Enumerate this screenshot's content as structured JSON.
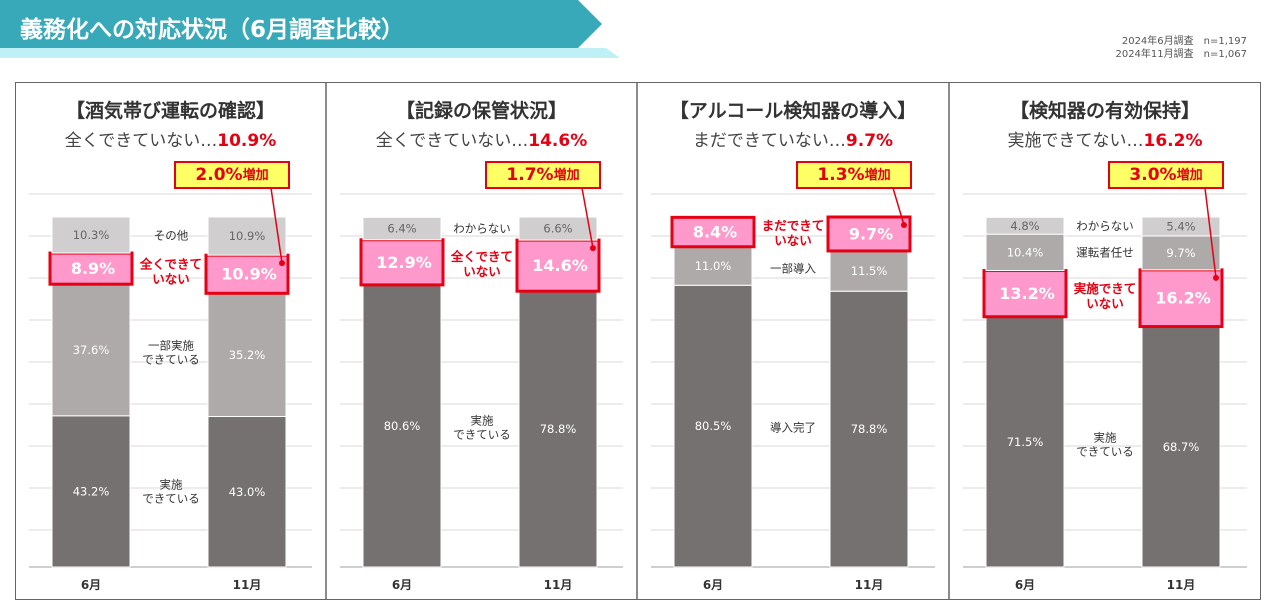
{
  "header": {
    "title": "義務化への対応状況（6月調査比較）",
    "survey_june": "2024年6月調査　n=1,197",
    "survey_nov": "2024年11月調査　n=1,067"
  },
  "colors": {
    "banner": "#38a9b8",
    "banner_light": "#bff0f5",
    "dark_bar": "#767171",
    "mid_bar": "#aeaaaa",
    "light_bar": "#d0cece",
    "highlight_fill": "#ff99cc",
    "highlight_border": "#e60012",
    "callout_fill": "#ffff66",
    "accent_red": "#e60012"
  },
  "chart_data": [
    {
      "type": "bar",
      "stacked": true,
      "title": "【酒気帯び運転の確認】",
      "subtitle_prefix": "全くできていない…",
      "subtitle_value": "10.9%",
      "categories": [
        "6月",
        "11月"
      ],
      "ylim": [
        0,
        100
      ],
      "callout": {
        "value": "2.0%",
        "suffix": "増加"
      },
      "series": [
        {
          "name": "実施\nできている",
          "tone": "dark",
          "values": [
            43.2,
            43.0
          ]
        },
        {
          "name": "一部実施\nできている",
          "tone": "mid",
          "values": [
            37.6,
            35.2
          ]
        },
        {
          "name": "全くできて\nいない",
          "tone": "highlight",
          "values": [
            8.9,
            10.9
          ]
        },
        {
          "name": "その他",
          "tone": "light",
          "values": [
            10.3,
            10.9
          ]
        }
      ]
    },
    {
      "type": "bar",
      "stacked": true,
      "title": "【記録の保管状況】",
      "subtitle_prefix": "全くできていない…",
      "subtitle_value": "14.6%",
      "categories": [
        "6月",
        "11月"
      ],
      "ylim": [
        0,
        100
      ],
      "callout": {
        "value": "1.7%",
        "suffix": "増加"
      },
      "series": [
        {
          "name": "実施\nできている",
          "tone": "dark",
          "values": [
            80.6,
            78.8
          ]
        },
        {
          "name": "全くできて\nいない",
          "tone": "highlight",
          "values": [
            12.9,
            14.6
          ]
        },
        {
          "name": "わからない",
          "tone": "light",
          "values": [
            6.4,
            6.6
          ]
        }
      ]
    },
    {
      "type": "bar",
      "stacked": true,
      "title": "【アルコール検知器の導入】",
      "subtitle_prefix": "まだできていない…",
      "subtitle_value": "9.7%",
      "categories": [
        "6月",
        "11月"
      ],
      "ylim": [
        0,
        100
      ],
      "callout": {
        "value": "1.3%",
        "suffix": "増加"
      },
      "series": [
        {
          "name": "導入完了",
          "tone": "dark",
          "values": [
            80.5,
            78.8
          ]
        },
        {
          "name": "一部導入",
          "tone": "mid",
          "values": [
            11.0,
            11.5
          ]
        },
        {
          "name": "まだできて\nいない",
          "tone": "highlight",
          "values": [
            8.4,
            9.7
          ]
        }
      ]
    },
    {
      "type": "bar",
      "stacked": true,
      "title": "【検知器の有効保持】",
      "subtitle_prefix": "実施できてない…",
      "subtitle_value": "16.2%",
      "categories": [
        "6月",
        "11月"
      ],
      "ylim": [
        0,
        100
      ],
      "callout": {
        "value": "3.0%",
        "suffix": "増加"
      },
      "series": [
        {
          "name": "実施\nできている",
          "tone": "dark",
          "values": [
            71.5,
            68.7
          ]
        },
        {
          "name": "実施できて\nいない",
          "tone": "highlight",
          "values": [
            13.2,
            16.2
          ]
        },
        {
          "name": "運転者任せ",
          "tone": "mid",
          "values": [
            10.4,
            9.7
          ]
        },
        {
          "name": "わからない",
          "tone": "light",
          "values": [
            4.8,
            5.4
          ]
        }
      ]
    }
  ]
}
